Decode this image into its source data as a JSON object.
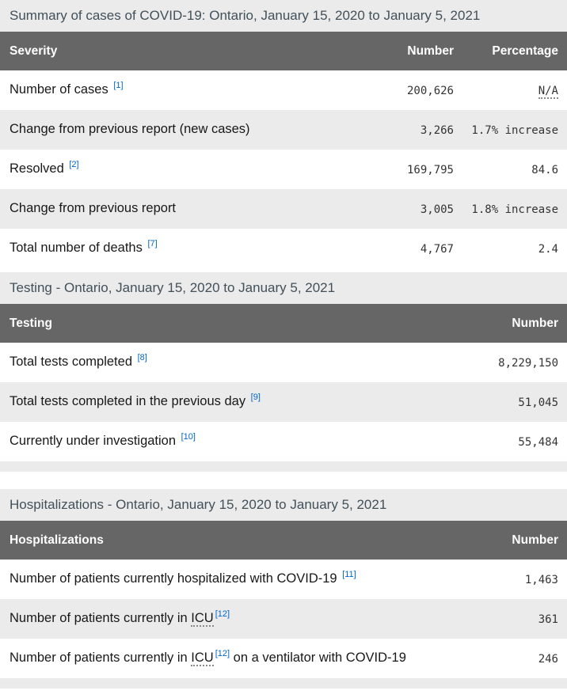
{
  "colors": {
    "table_header_bg": "#666666",
    "table_header_text": "#ffffff",
    "row_alt_bg": "#ebebeb",
    "caption_bg": "#ebebeb",
    "caption_text": "#42505a",
    "label_text": "#181818",
    "number_text": "#333333",
    "footnote_link": "#0066cc"
  },
  "tables": [
    {
      "caption": "Summary of cases of COVID-19: Ontario, January 15, 2020 to January 5, 2021",
      "columns": [
        {
          "key": "severity",
          "label": "Severity"
        },
        {
          "key": "number",
          "label": "Number"
        },
        {
          "key": "percentage",
          "label": "Percentage"
        }
      ],
      "rows": [
        {
          "cells": [
            {
              "parts": [
                {
                  "t": "text",
                  "v": "Number of cases "
                },
                {
                  "t": "sup",
                  "v": "[1]"
                }
              ]
            },
            {
              "parts": [
                {
                  "t": "text",
                  "v": "200,626"
                }
              ]
            },
            {
              "parts": [
                {
                  "t": "abbr",
                  "v": "N/A"
                }
              ]
            }
          ]
        },
        {
          "cells": [
            {
              "parts": [
                {
                  "t": "text",
                  "v": "Change from previous report (new cases)"
                }
              ]
            },
            {
              "parts": [
                {
                  "t": "text",
                  "v": "3,266"
                }
              ]
            },
            {
              "parts": [
                {
                  "t": "text",
                  "v": "1.7% increase"
                }
              ]
            }
          ]
        },
        {
          "cells": [
            {
              "parts": [
                {
                  "t": "text",
                  "v": "Resolved "
                },
                {
                  "t": "sup",
                  "v": "[2]"
                }
              ]
            },
            {
              "parts": [
                {
                  "t": "text",
                  "v": "169,795"
                }
              ]
            },
            {
              "parts": [
                {
                  "t": "text",
                  "v": "84.6"
                }
              ]
            }
          ]
        },
        {
          "cells": [
            {
              "parts": [
                {
                  "t": "text",
                  "v": "Change from previous report"
                }
              ]
            },
            {
              "parts": [
                {
                  "t": "text",
                  "v": "3,005"
                }
              ]
            },
            {
              "parts": [
                {
                  "t": "text",
                  "v": "1.8% increase"
                }
              ]
            }
          ]
        },
        {
          "cells": [
            {
              "parts": [
                {
                  "t": "text",
                  "v": "Total number of deaths "
                },
                {
                  "t": "sup",
                  "v": "[7]"
                }
              ]
            },
            {
              "parts": [
                {
                  "t": "text",
                  "v": "4,767"
                }
              ]
            },
            {
              "parts": [
                {
                  "t": "text",
                  "v": "2.4"
                }
              ]
            }
          ]
        }
      ]
    },
    {
      "caption": "Testing - Ontario, January 15, 2020 to January 5, 2021",
      "columns": [
        {
          "key": "testing",
          "label": "Testing"
        },
        {
          "key": "number",
          "label": "Number"
        }
      ],
      "rows": [
        {
          "cells": [
            {
              "parts": [
                {
                  "t": "text",
                  "v": "Total tests completed "
                },
                {
                  "t": "sup",
                  "v": "[8]"
                }
              ]
            },
            {
              "parts": [
                {
                  "t": "text",
                  "v": "8,229,150"
                }
              ]
            }
          ]
        },
        {
          "cells": [
            {
              "parts": [
                {
                  "t": "text",
                  "v": "Total tests completed in the previous day "
                },
                {
                  "t": "sup",
                  "v": "[9]"
                }
              ]
            },
            {
              "parts": [
                {
                  "t": "text",
                  "v": "51,045"
                }
              ]
            }
          ]
        },
        {
          "cells": [
            {
              "parts": [
                {
                  "t": "text",
                  "v": "Currently under investigation "
                },
                {
                  "t": "sup",
                  "v": "[10]"
                }
              ]
            },
            {
              "parts": [
                {
                  "t": "text",
                  "v": "55,484"
                }
              ]
            }
          ]
        },
        {
          "empty": true
        }
      ]
    },
    {
      "caption": "Hospitalizations - Ontario, January 15, 2020 to January 5, 2021",
      "columns": [
        {
          "key": "hospitalizations",
          "label": "Hospitalizations"
        },
        {
          "key": "number",
          "label": "Number"
        }
      ],
      "rows": [
        {
          "cells": [
            {
              "parts": [
                {
                  "t": "text",
                  "v": "Number of patients currently hospitalized with COVID-19 "
                },
                {
                  "t": "sup",
                  "v": "[11]"
                }
              ]
            },
            {
              "parts": [
                {
                  "t": "text",
                  "v": "1,463"
                }
              ]
            }
          ]
        },
        {
          "cells": [
            {
              "parts": [
                {
                  "t": "text",
                  "v": "Number of patients currently in "
                },
                {
                  "t": "abbr",
                  "v": "ICU"
                },
                {
                  "t": "sup",
                  "v": "[12]"
                }
              ]
            },
            {
              "parts": [
                {
                  "t": "text",
                  "v": "361"
                }
              ]
            }
          ]
        },
        {
          "cells": [
            {
              "parts": [
                {
                  "t": "text",
                  "v": "Number of patients currently in "
                },
                {
                  "t": "abbr",
                  "v": "ICU"
                },
                {
                  "t": "sup",
                  "v": "[12]"
                },
                {
                  "t": "text",
                  "v": " on a ventilator with COVID-19"
                }
              ]
            },
            {
              "parts": [
                {
                  "t": "text",
                  "v": "246"
                }
              ]
            }
          ]
        },
        {
          "empty": true
        }
      ]
    }
  ]
}
